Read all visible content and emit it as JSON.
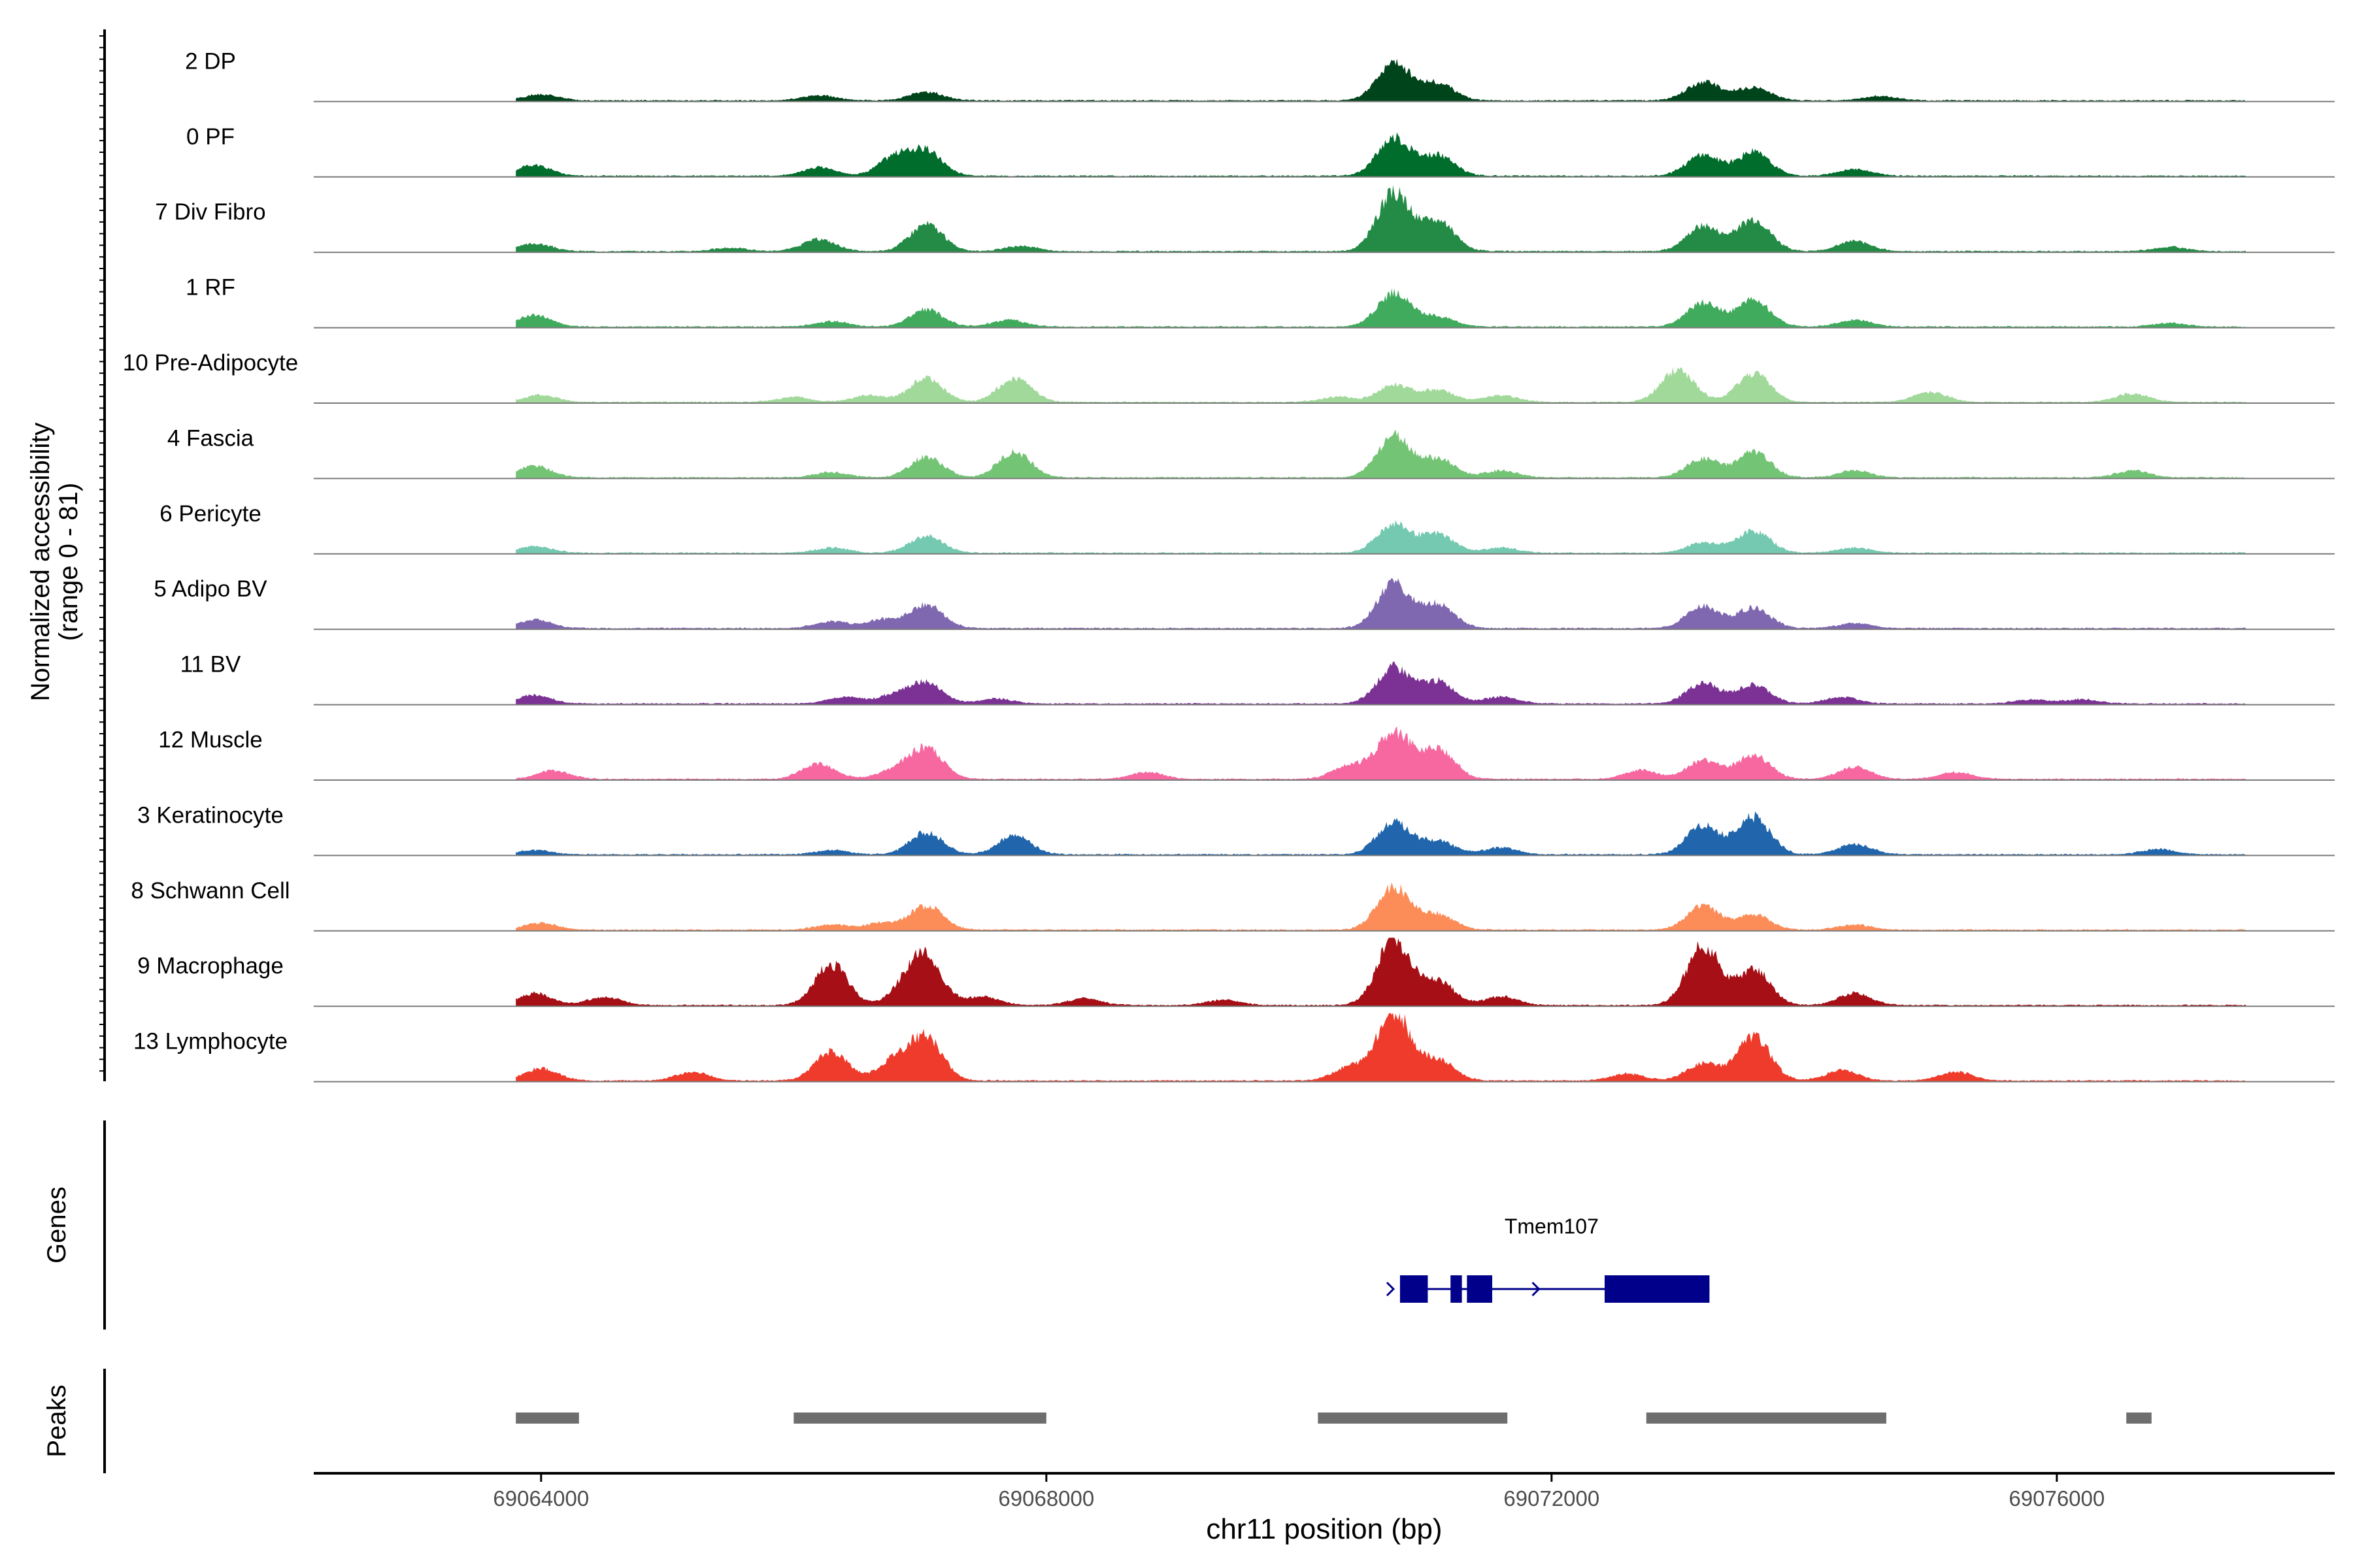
{
  "chart_data": {
    "type": "area",
    "title": "",
    "xlabel": "chr11 position (bp)",
    "ylabel_line1": "Normalized accessibility",
    "ylabel_line2": "(range 0 - 81)",
    "ylim": [
      0,
      81
    ],
    "xlim": [
      69062200,
      69078200
    ],
    "xticks": [
      69064000,
      69068000,
      69072000,
      69076000
    ],
    "xtick_labels": [
      "69064000",
      "69068000",
      "69072000",
      "69076000"
    ],
    "colors": {
      "baseline": "#7a7a7a",
      "gene": "#00008b",
      "peak": "#6e6e6e",
      "axis": "#000000"
    },
    "tracks": [
      {
        "name": "2 DP",
        "color": "#00441b",
        "peaks": [
          [
            69064000,
            7
          ],
          [
            69066200,
            6
          ],
          [
            69067050,
            10
          ],
          [
            69070750,
            45
          ],
          [
            69071100,
            20
          ],
          [
            69073200,
            22
          ],
          [
            69073600,
            16
          ],
          [
            69074600,
            5
          ]
        ]
      },
      {
        "name": "0 PF",
        "color": "#006d2c",
        "peaks": [
          [
            69063950,
            13
          ],
          [
            69066200,
            10
          ],
          [
            69066800,
            22
          ],
          [
            69067050,
            28
          ],
          [
            69070750,
            45
          ],
          [
            69071100,
            24
          ],
          [
            69073200,
            25
          ],
          [
            69073600,
            28
          ],
          [
            69074400,
            8
          ]
        ]
      },
      {
        "name": "7 Div Fibro",
        "color": "#238b45",
        "peaks": [
          [
            69063950,
            9
          ],
          [
            69065500,
            4
          ],
          [
            69066200,
            14
          ],
          [
            69067050,
            32
          ],
          [
            69067800,
            6
          ],
          [
            69070750,
            68
          ],
          [
            69071100,
            35
          ],
          [
            69073200,
            30
          ],
          [
            69073600,
            38
          ],
          [
            69074400,
            12
          ],
          [
            69076900,
            5
          ]
        ]
      },
      {
        "name": "1 RF",
        "color": "#41ab5d",
        "peaks": [
          [
            69063950,
            14
          ],
          [
            69066300,
            6
          ],
          [
            69067050,
            20
          ],
          [
            69067700,
            8
          ],
          [
            69070750,
            40
          ],
          [
            69071100,
            12
          ],
          [
            69073200,
            28
          ],
          [
            69073600,
            32
          ],
          [
            69074400,
            8
          ],
          [
            69076900,
            4
          ]
        ]
      },
      {
        "name": "10 Pre-Adipocyte",
        "color": "#a1d99b",
        "peaks": [
          [
            69064000,
            8
          ],
          [
            69066000,
            6
          ],
          [
            69066600,
            8
          ],
          [
            69067050,
            28
          ],
          [
            69067750,
            28
          ],
          [
            69070300,
            6
          ],
          [
            69070750,
            20
          ],
          [
            69071100,
            14
          ],
          [
            69071600,
            8
          ],
          [
            69073000,
            38
          ],
          [
            69073600,
            34
          ],
          [
            69075000,
            12
          ],
          [
            69076600,
            10
          ]
        ]
      },
      {
        "name": "4 Fascia",
        "color": "#74c476",
        "peaks": [
          [
            69063950,
            14
          ],
          [
            69066300,
            6
          ],
          [
            69067050,
            24
          ],
          [
            69067750,
            30
          ],
          [
            69070750,
            50
          ],
          [
            69071100,
            22
          ],
          [
            69071600,
            8
          ],
          [
            69073200,
            22
          ],
          [
            69073600,
            30
          ],
          [
            69074400,
            8
          ],
          [
            69076600,
            8
          ]
        ]
      },
      {
        "name": "6 Pericyte",
        "color": "#74c9b0",
        "peaks": [
          [
            69063950,
            8
          ],
          [
            69066300,
            6
          ],
          [
            69067050,
            20
          ],
          [
            69070750,
            34
          ],
          [
            69071100,
            22
          ],
          [
            69071600,
            6
          ],
          [
            69073200,
            12
          ],
          [
            69073600,
            26
          ],
          [
            69074400,
            6
          ]
        ]
      },
      {
        "name": "5 Adipo BV",
        "color": "#8068b1",
        "peaks": [
          [
            69063950,
            10
          ],
          [
            69066300,
            8
          ],
          [
            69066700,
            10
          ],
          [
            69067050,
            28
          ],
          [
            69070750,
            52
          ],
          [
            69071100,
            28
          ],
          [
            69073200,
            26
          ],
          [
            69073600,
            24
          ],
          [
            69074400,
            6
          ]
        ]
      },
      {
        "name": "11 BV",
        "color": "#7b3294",
        "peaks": [
          [
            69063950,
            10
          ],
          [
            69066400,
            8
          ],
          [
            69066800,
            10
          ],
          [
            69067050,
            24
          ],
          [
            69067600,
            6
          ],
          [
            69070750,
            42
          ],
          [
            69071100,
            26
          ],
          [
            69071600,
            8
          ],
          [
            69073200,
            24
          ],
          [
            69073600,
            22
          ],
          [
            69074300,
            8
          ],
          [
            69075800,
            5
          ],
          [
            69076200,
            5
          ]
        ]
      },
      {
        "name": "12 Muscle",
        "color": "#f768a1",
        "peaks": [
          [
            69064100,
            10
          ],
          [
            69066200,
            18
          ],
          [
            69066800,
            10
          ],
          [
            69067050,
            36
          ],
          [
            69068800,
            8
          ],
          [
            69070400,
            16
          ],
          [
            69070750,
            56
          ],
          [
            69071100,
            36
          ],
          [
            69072700,
            10
          ],
          [
            69073200,
            22
          ],
          [
            69073600,
            28
          ],
          [
            69074400,
            14
          ],
          [
            69075200,
            8
          ]
        ]
      },
      {
        "name": "3 Keratinocyte",
        "color": "#2166ac",
        "peaks": [
          [
            69063950,
            5
          ],
          [
            69066300,
            5
          ],
          [
            69067050,
            26
          ],
          [
            69067750,
            22
          ],
          [
            69070750,
            38
          ],
          [
            69071100,
            16
          ],
          [
            69071600,
            8
          ],
          [
            69073200,
            34
          ],
          [
            69073600,
            44
          ],
          [
            69074400,
            12
          ],
          [
            69076800,
            6
          ]
        ]
      },
      {
        "name": "8 Schwann Cell",
        "color": "#fc8d59",
        "peaks": [
          [
            69064000,
            8
          ],
          [
            69066300,
            6
          ],
          [
            69066700,
            8
          ],
          [
            69067050,
            28
          ],
          [
            69070750,
            50
          ],
          [
            69071100,
            18
          ],
          [
            69073200,
            28
          ],
          [
            69073600,
            18
          ],
          [
            69074400,
            6
          ]
        ]
      },
      {
        "name": "9 Macrophage",
        "color": "#a50f15",
        "peaks": [
          [
            69063950,
            14
          ],
          [
            69064500,
            10
          ],
          [
            69066300,
            48
          ],
          [
            69066900,
            20
          ],
          [
            69067050,
            50
          ],
          [
            69067500,
            10
          ],
          [
            69068300,
            8
          ],
          [
            69069400,
            6
          ],
          [
            69070750,
            78
          ],
          [
            69071100,
            28
          ],
          [
            69071600,
            10
          ],
          [
            69073200,
            70
          ],
          [
            69073600,
            42
          ],
          [
            69074400,
            14
          ]
        ]
      },
      {
        "name": "13 Lymphocyte",
        "color": "#ef3b2c",
        "peaks": [
          [
            69064000,
            14
          ],
          [
            69065200,
            10
          ],
          [
            69066300,
            34
          ],
          [
            69066800,
            24
          ],
          [
            69067050,
            48
          ],
          [
            69070400,
            16
          ],
          [
            69070750,
            81
          ],
          [
            69071100,
            24
          ],
          [
            69072600,
            8
          ],
          [
            69073200,
            20
          ],
          [
            69073600,
            52
          ],
          [
            69074300,
            12
          ],
          [
            69075200,
            10
          ]
        ]
      }
    ],
    "genes": {
      "label": "Genes",
      "name": "Tmem107",
      "start": 69070800,
      "end": 69073250,
      "strand": "+",
      "exons": [
        [
          69070800,
          69071020
        ],
        [
          69071200,
          69071290
        ],
        [
          69071330,
          69071530
        ],
        [
          69072420,
          69073250
        ]
      ]
    },
    "peaks_track": {
      "label": "Peaks",
      "regions": [
        [
          69063800,
          69064300
        ],
        [
          69066000,
          69068000
        ],
        [
          69070150,
          69071650
        ],
        [
          69072750,
          69074650
        ],
        [
          69076550,
          69076750
        ]
      ]
    }
  }
}
